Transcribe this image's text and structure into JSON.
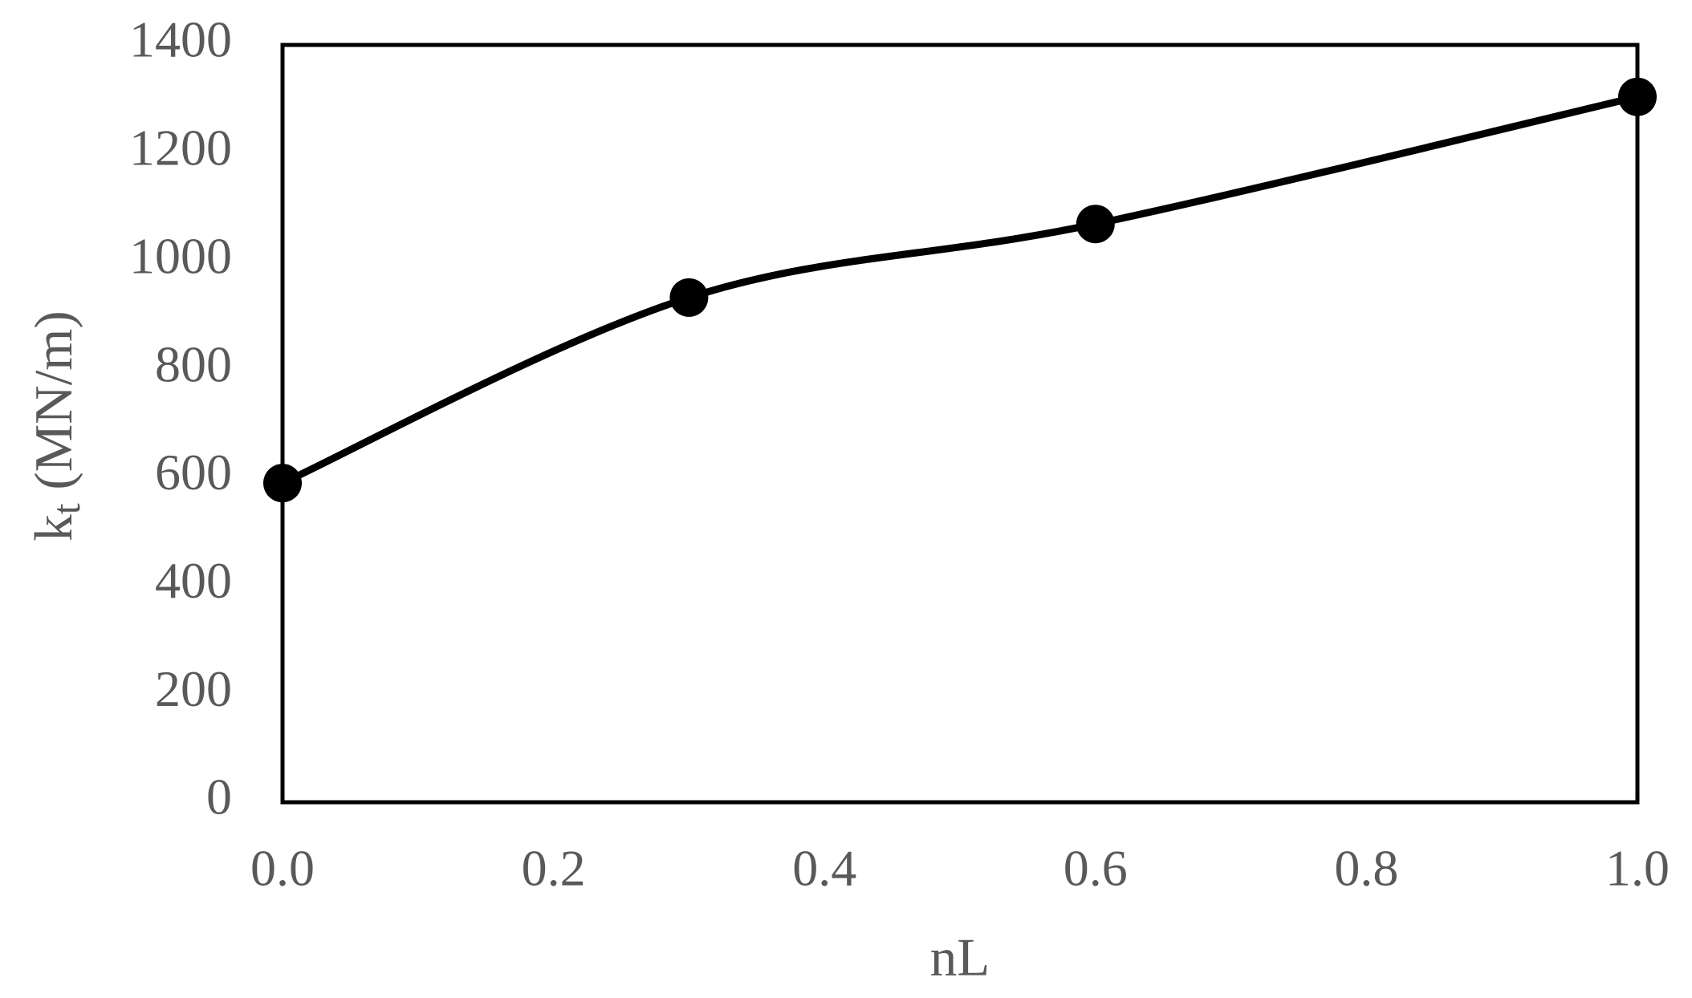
{
  "chart_data": {
    "type": "line",
    "x_label": "nL",
    "y_label": [
      "k",
      "t",
      " (MN/m)"
    ],
    "x": [
      0,
      0.3,
      0.6,
      1.0
    ],
    "series": [
      {
        "color": "#000000",
        "values": [
          590,
          933,
          1069,
          1304
        ]
      }
    ],
    "xlim": [
      0,
      1
    ],
    "xticks": [
      {
        "value": 0,
        "label": "0.0"
      },
      0.2,
      0.4,
      0.6,
      0.8,
      {
        "value": 1,
        "label": "1.0"
      }
    ],
    "ylim": [
      0,
      1400
    ],
    "yticks": [
      0,
      200,
      400,
      600,
      800,
      1000,
      1200,
      1400
    ],
    "smooth": true,
    "markers": true
  }
}
